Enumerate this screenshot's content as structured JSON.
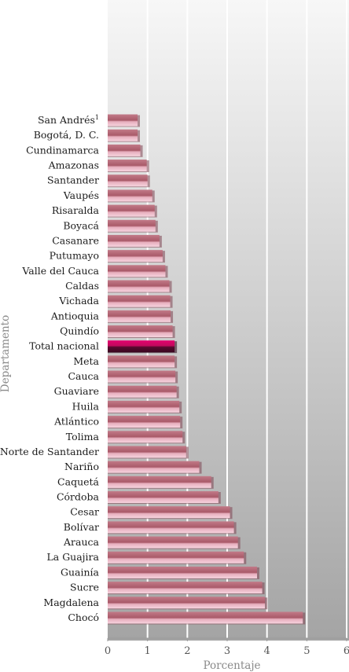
{
  "chart_data": {
    "type": "bar",
    "orientation": "horizontal",
    "xlabel": "Porcentaje",
    "ylabel": "Departamento",
    "xlim": [
      0,
      6
    ],
    "xticks": [
      "0",
      "1",
      "2",
      "3",
      "4",
      "5",
      "6"
    ],
    "grid": true,
    "categories": [
      "San Andrés",
      "Bogotá, D. C.",
      "Cundinamarca",
      "Amazonas",
      "Santander",
      "Vaupés",
      "Risaralda",
      "Boyacá",
      "Casanare",
      "Putumayo",
      "Valle del Cauca",
      "Caldas",
      "Vichada",
      "Antioquia",
      "Quindío",
      "Total nacional",
      "Meta",
      "Cauca",
      "Guaviare",
      "Huila",
      "Atlántico",
      "Tolima",
      "Norte de Santander",
      "Nariño",
      "Caquetá",
      "Córdoba",
      "Cesar",
      "Bolívar",
      "Arauca",
      "La Guajira",
      "Guainía",
      "Sucre",
      "Magdalena",
      "Chocó"
    ],
    "superscripts": [
      "1",
      "",
      "",
      "",
      "",
      "",
      "",
      "",
      "",
      "",
      "",
      "",
      "",
      "",
      "",
      "",
      "",
      "",
      "",
      "",
      "",
      "",
      "",
      "",
      "",
      "",
      "",
      "",
      "",
      "",
      "",
      "",
      "",
      ""
    ],
    "values": [
      0.75,
      0.75,
      0.82,
      0.98,
      1.0,
      1.12,
      1.18,
      1.2,
      1.3,
      1.38,
      1.45,
      1.55,
      1.57,
      1.58,
      1.63,
      1.68,
      1.68,
      1.7,
      1.73,
      1.8,
      1.82,
      1.88,
      1.97,
      2.3,
      2.6,
      2.78,
      3.07,
      3.17,
      3.27,
      3.42,
      3.75,
      3.88,
      3.95,
      4.9
    ],
    "highlight": "Total nacional",
    "colors": {
      "bar_base": "#b0606e",
      "bar_light": "#f1c2cf",
      "highlight_base": "#4e0b2b",
      "highlight_light": "#e4006e",
      "bg_light": "#f6f6f6",
      "bg_dark": "#a6a6a6",
      "grid": "#ffffff"
    }
  }
}
